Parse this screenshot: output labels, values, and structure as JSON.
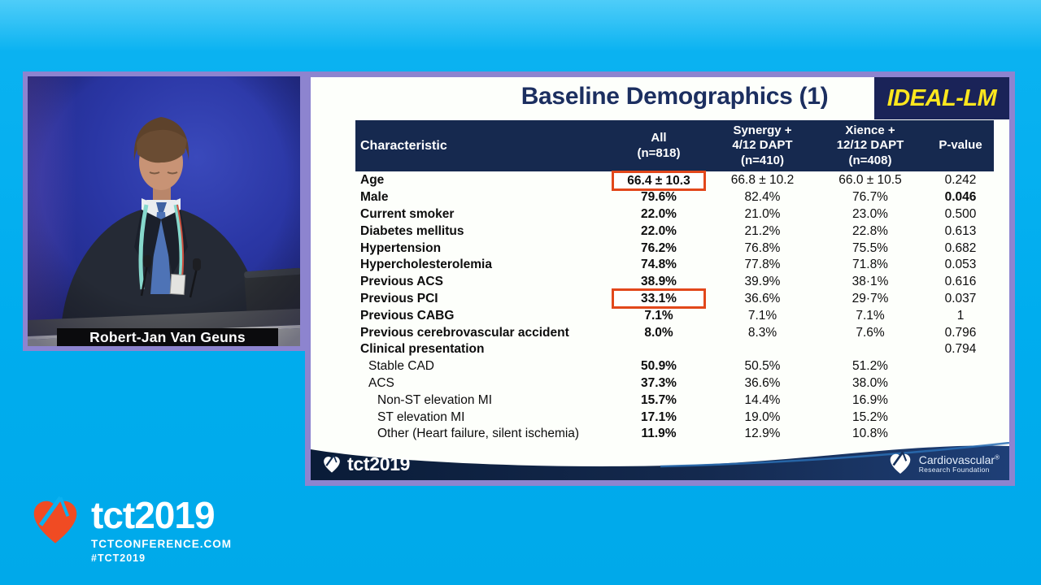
{
  "presenter": {
    "name": "Robert-Jan Van Geuns"
  },
  "slide": {
    "title": "Baseline Demographics (1)",
    "badge": "IDEAL-LM",
    "table": {
      "headers": {
        "characteristic": "Characteristic",
        "all": "All\n(n=818)",
        "synergy": "Synergy +\n4/12 DAPT\n(n=410)",
        "xience": "Xience +\n12/12 DAPT\n(n=408)",
        "pvalue": "P-value"
      },
      "rows": [
        {
          "label": "Age",
          "all": "66.4 ± 10.3",
          "synergy": "66.8 ± 10.2",
          "xience": "66.0 ± 10.5",
          "p": "0.242",
          "boxed": true
        },
        {
          "label": "Male",
          "all": "79.6%",
          "synergy": "82.4%",
          "xience": "76.7%",
          "p": "0.046",
          "p_bold": true
        },
        {
          "label": "Current smoker",
          "all": "22.0%",
          "synergy": "21.0%",
          "xience": "23.0%",
          "p": "0.500"
        },
        {
          "label": "Diabetes mellitus",
          "all": "22.0%",
          "synergy": "21.2%",
          "xience": "22.8%",
          "p": "0.613"
        },
        {
          "label": "Hypertension",
          "all": "76.2%",
          "synergy": "76.8%",
          "xience": "75.5%",
          "p": "0.682"
        },
        {
          "label": "Hypercholesterolemia",
          "all": "74.8%",
          "synergy": "77.8%",
          "xience": "71.8%",
          "p": "0.053"
        },
        {
          "label": "Previous ACS",
          "all": "38.9%",
          "synergy": "39.9%",
          "xience": "38·1%",
          "p": "0.616"
        },
        {
          "label": "Previous PCI",
          "all": "33.1%",
          "synergy": "36.6%",
          "xience": "29·7%",
          "p": "0.037",
          "boxed": true
        },
        {
          "label": "Previous CABG",
          "all": "7.1%",
          "synergy": "7.1%",
          "xience": "7.1%",
          "p": "1"
        },
        {
          "label": "Previous cerebrovascular accident",
          "all": "8.0%",
          "synergy": "8.3%",
          "xience": "7.6%",
          "p": "0.796"
        },
        {
          "label": "Clinical presentation",
          "all": "",
          "synergy": "",
          "xience": "",
          "p": "0.794"
        },
        {
          "label": "Stable CAD",
          "all": "50.9%",
          "synergy": "50.5%",
          "xience": "51.2%",
          "p": "",
          "indent": 1,
          "plain_label": true
        },
        {
          "label": "ACS",
          "all": "37.3%",
          "synergy": "36.6%",
          "xience": "38.0%",
          "p": "",
          "indent": 1,
          "plain_label": true
        },
        {
          "label": "Non-ST elevation MI",
          "all": "15.7%",
          "synergy": "14.4%",
          "xience": "16.9%",
          "p": "",
          "indent": 2,
          "plain_label": true
        },
        {
          "label": "ST elevation MI",
          "all": "17.1%",
          "synergy": "19.0%",
          "xience": "15.2%",
          "p": "",
          "indent": 2,
          "plain_label": true
        },
        {
          "label": "Other (Heart failure, silent ischemia)",
          "all": "11.9%",
          "synergy": "12.9%",
          "xience": "10.8%",
          "p": "",
          "indent": 2,
          "plain_label": true
        }
      ]
    },
    "footer": {
      "brand": "tct2019",
      "org_name": "Cardiovascular",
      "org_reg": "®",
      "org_sub": "Research Foundation"
    }
  },
  "branding": {
    "brand": "tct2019",
    "site": "TCTCONFERENCE.COM",
    "hashtag": "#TCT2019"
  },
  "colors": {
    "background_cyan": "#00adee",
    "frame_purple": "#8d84cf",
    "slide_navy": "#16294f",
    "badge_navy": "#1a2358",
    "badge_yellow": "#ffe71e",
    "title_navy": "#1c2f60",
    "highlight_red": "#e2471b",
    "brand_orange": "#f04b23"
  }
}
